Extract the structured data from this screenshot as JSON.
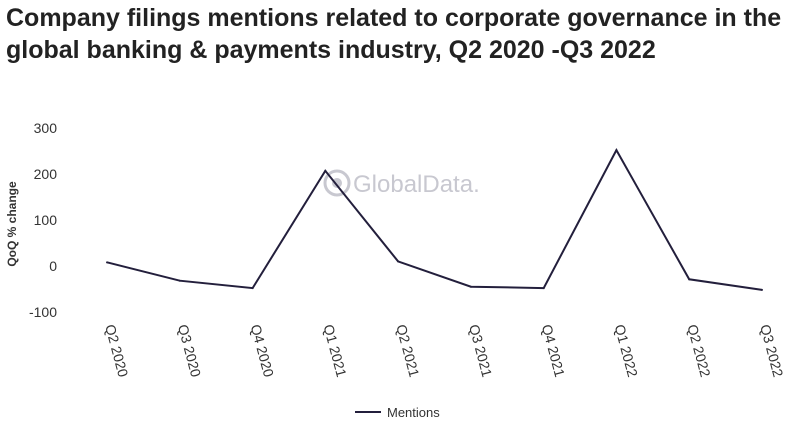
{
  "chart_data": {
    "type": "line",
    "title": "Company filings mentions related to corporate governance in the global banking & payments industry, Q2 2020 -Q3 2022",
    "ylabel": "QoQ % change",
    "xlabel": "",
    "ylim": [
      -100,
      300
    ],
    "yticks": [
      300,
      200,
      100,
      0,
      -100
    ],
    "categories": [
      "Q2 2020",
      "Q3 2020",
      "Q4 2020",
      "Q1 2021",
      "Q2 2021",
      "Q3 2021",
      "Q4 2021",
      "Q1 2022",
      "Q2 2022",
      "Q3 2022"
    ],
    "series": [
      {
        "name": "Mentions",
        "values": [
          8,
          -32,
          -48,
          207,
          10,
          -45,
          -48,
          252,
          -29,
          -52
        ]
      }
    ],
    "grid": false,
    "legend": "bottom-center",
    "line_color": "#231f3c"
  },
  "watermark": "GlobalData."
}
